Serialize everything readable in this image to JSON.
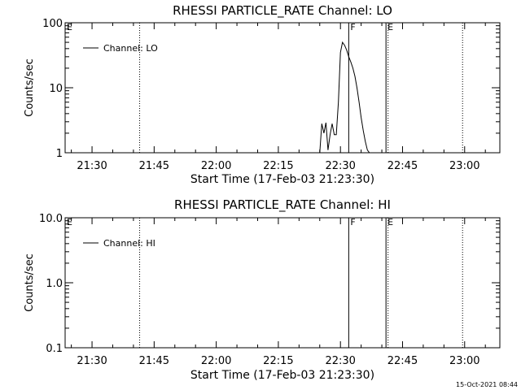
{
  "footer": {
    "timestamp": "15-Oct-2021 08:44"
  },
  "chart_data": [
    {
      "type": "line",
      "title": "RHESSI PARTICLE_RATE Channel: LO",
      "xlabel": "Start Time (17-Feb-03 21:23:30)",
      "ylabel": "Counts/sec",
      "yscale": "log",
      "xlim": [
        "21:23:30",
        "23:08:30"
      ],
      "ylim": [
        1,
        100
      ],
      "x_ticks": [
        "21:30",
        "21:45",
        "22:00",
        "22:15",
        "22:30",
        "22:45",
        "23:00"
      ],
      "y_ticks": [
        {
          "value": 1,
          "label": "1"
        },
        {
          "value": 10,
          "label": "10"
        },
        {
          "value": 100,
          "label": "100"
        }
      ],
      "legend": {
        "entry": "Channel: LO",
        "position": "top-left"
      },
      "markers": [
        {
          "time": "21:23:30",
          "label": "E",
          "style": "solid"
        },
        {
          "time": "21:41:30",
          "label": "",
          "style": "dotted"
        },
        {
          "time": "22:32:00",
          "label": "F",
          "style": "solid"
        },
        {
          "time": "22:41:00",
          "label": "E",
          "style": "solid"
        },
        {
          "time": "22:41:30",
          "label": "",
          "style": "dotted"
        },
        {
          "time": "22:59:30",
          "label": "",
          "style": "dotted"
        }
      ],
      "series": [
        {
          "name": "Channel: LO",
          "x": [
            "22:25:00",
            "22:25:30",
            "22:26:00",
            "22:26:30",
            "22:27:00",
            "22:27:30",
            "22:28:00",
            "22:28:30",
            "22:29:00",
            "22:29:30",
            "22:30:00",
            "22:30:30",
            "22:31:00",
            "22:31:30",
            "22:32:00",
            "22:32:30",
            "22:33:00",
            "22:33:30",
            "22:34:00",
            "22:34:30",
            "22:35:00",
            "22:35:30",
            "22:36:00",
            "22:36:30",
            "22:37:00"
          ],
          "values": [
            1,
            2.8,
            2.0,
            2.9,
            1.1,
            1.9,
            2.8,
            1.9,
            1.9,
            6.0,
            35,
            50,
            45,
            38,
            30,
            25,
            20,
            15,
            10,
            6,
            3.5,
            2.2,
            1.5,
            1.1,
            1
          ]
        }
      ]
    },
    {
      "type": "line",
      "title": "RHESSI PARTICLE_RATE Channel: HI",
      "xlabel": "Start Time (17-Feb-03 21:23:30)",
      "ylabel": "Counts/sec",
      "yscale": "log",
      "xlim": [
        "21:23:30",
        "23:08:30"
      ],
      "ylim": [
        0.1,
        10.0
      ],
      "x_ticks": [
        "21:30",
        "21:45",
        "22:00",
        "22:15",
        "22:30",
        "22:45",
        "23:00"
      ],
      "y_ticks": [
        {
          "value": 0.1,
          "label": "0.1"
        },
        {
          "value": 1,
          "label": "1.0"
        },
        {
          "value": 10,
          "label": "10.0"
        }
      ],
      "legend": {
        "entry": "Channel: HI",
        "position": "top-left"
      },
      "markers": [
        {
          "time": "21:23:30",
          "label": "E",
          "style": "solid"
        },
        {
          "time": "21:41:30",
          "label": "",
          "style": "dotted"
        },
        {
          "time": "22:32:00",
          "label": "F",
          "style": "solid"
        },
        {
          "time": "22:41:00",
          "label": "E",
          "style": "solid"
        },
        {
          "time": "22:41:30",
          "label": "",
          "style": "dotted"
        },
        {
          "time": "22:59:30",
          "label": "",
          "style": "dotted"
        }
      ],
      "series": [
        {
          "name": "Channel: HI",
          "x": [],
          "values": []
        }
      ]
    }
  ]
}
